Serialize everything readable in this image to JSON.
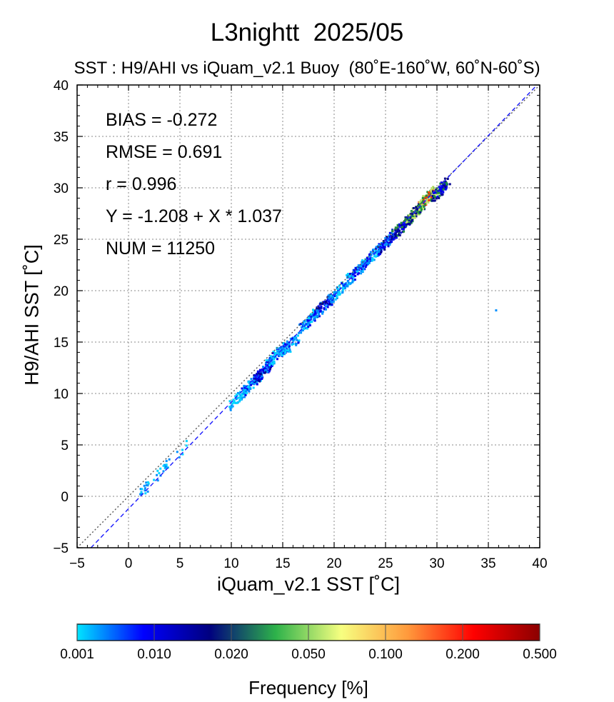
{
  "chart_data": {
    "type": "heatmap",
    "title": "L3nightt  2025/05",
    "subtitle": "SST : H9/AHI vs iQuam_v2.1 Buoy  (80˚E-160˚W, 60˚N-60˚S)",
    "xlabel": "iQuam_v2.1 SST [˚C]",
    "ylabel": "H9/AHI SST [˚C]",
    "xlim": [
      -5,
      40
    ],
    "ylim": [
      -5,
      40
    ],
    "xticks": [
      -5,
      0,
      5,
      10,
      15,
      20,
      25,
      30,
      35,
      40
    ],
    "yticks": [
      -5,
      0,
      5,
      10,
      15,
      20,
      25,
      30,
      35,
      40
    ],
    "grid": true,
    "stats": {
      "bias": "BIAS = -0.272",
      "rmse": "RMSE = 0.691",
      "r": "r = 0.996",
      "fit": "Y = -1.208 + X * 1.037",
      "num": "NUM = 11250"
    },
    "reference_line": {
      "intercept": 0,
      "slope": 1,
      "style": "dotted",
      "color": "#555555"
    },
    "regression_line": {
      "intercept": -1.208,
      "slope": 1.037,
      "style": "dashed",
      "color": "#1a1aff"
    },
    "clusters": [
      {
        "x": 1.5,
        "y": 0.6,
        "count": 16,
        "level": 0
      },
      {
        "x": 3.2,
        "y": 2.5,
        "count": 18,
        "level": 0
      },
      {
        "x": 5.0,
        "y": 4.2,
        "count": 6,
        "level": 0
      },
      {
        "x": 10.5,
        "y": 9.4,
        "count": 40,
        "level": 1
      },
      {
        "x": 11.8,
        "y": 10.8,
        "count": 90,
        "level": 2
      },
      {
        "x": 13.0,
        "y": 12.0,
        "count": 90,
        "level": 3
      },
      {
        "x": 14.3,
        "y": 13.7,
        "count": 90,
        "level": 2
      },
      {
        "x": 15.6,
        "y": 14.6,
        "count": 60,
        "level": 2
      },
      {
        "x": 17.5,
        "y": 17.0,
        "count": 90,
        "level": 2
      },
      {
        "x": 19.0,
        "y": 18.5,
        "count": 90,
        "level": 3
      },
      {
        "x": 20.2,
        "y": 19.7,
        "count": 60,
        "level": 2
      },
      {
        "x": 21.8,
        "y": 21.5,
        "count": 80,
        "level": 2
      },
      {
        "x": 23.5,
        "y": 23.1,
        "count": 80,
        "level": 2
      },
      {
        "x": 25.0,
        "y": 24.6,
        "count": 80,
        "level": 3
      },
      {
        "x": 26.5,
        "y": 26.1,
        "count": 90,
        "level": 4
      },
      {
        "x": 27.8,
        "y": 27.5,
        "count": 110,
        "level": 5
      },
      {
        "x": 29.0,
        "y": 28.9,
        "count": 120,
        "level": 6
      },
      {
        "x": 30.3,
        "y": 29.7,
        "count": 70,
        "level": 4
      },
      {
        "x": 35.9,
        "y": 18.8,
        "count": 1,
        "level": 0
      }
    ],
    "colorbar": {
      "label": "Frequency [%]",
      "ticks": [
        "0.001",
        "0.010",
        "0.020",
        "0.050",
        "0.100",
        "0.200",
        "0.500"
      ],
      "colors": [
        "#00e5ff",
        "#0000ff",
        "#000080",
        "#2db24a",
        "#f7ff80",
        "#ff9a3c",
        "#ff0000",
        "#8b0000"
      ]
    }
  }
}
